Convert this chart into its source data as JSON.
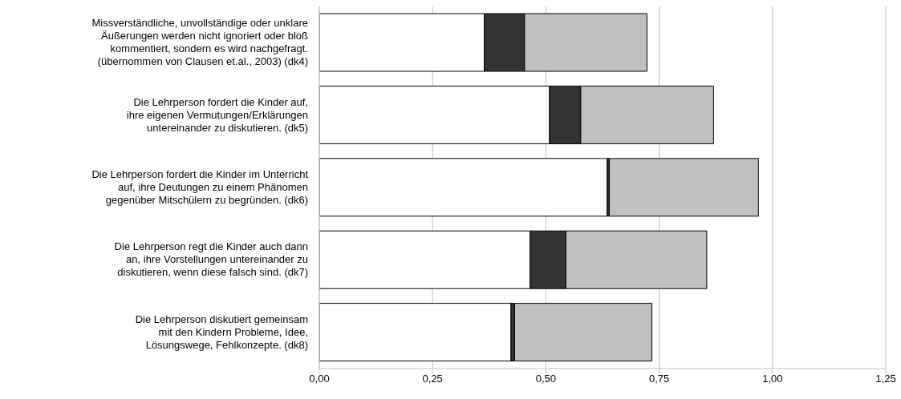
{
  "chart_data": {
    "type": "bar",
    "orientation": "horizontal",
    "stacked": true,
    "categories": [
      "Missverständliche, unvollständige oder unklare\nÄußerungen werden nicht ignoriert oder bloß\nkommentiert, sondern es wird nachgefragt.\n(übernommen von Clausen et.al., 2003) (dk4)",
      "Die Lehrperson fordert die Kinder auf,\nihre eigenen Vermutungen/Erklärungen\nuntereinander zu diskutieren. (dk5)",
      "Die Lehrperson fordert die Kinder im Unterricht\nauf, ihre Deutungen zu einem Phänomen\ngegenüber Mitschülern zu begründen. (dk6)",
      "Die Lehrperson regt die Kinder auch dann\nan, ihre Vorstellungen untereinander zu\ndiskutieren, wenn diese falsch sind. (dk7)",
      "Die Lehrperson diskutiert gemeinsam\nmit den Kindern Probleme, Idee,\nLösungswege, Fehlkonzepte. (dk8)"
    ],
    "series": [
      {
        "color": "#ffffff",
        "values": [
          0.364,
          0.508,
          0.635,
          0.465,
          0.423
        ]
      },
      {
        "color": "#333333",
        "values": [
          0.089,
          0.069,
          0.005,
          0.079,
          0.008
        ]
      },
      {
        "color": "#c0c0c0",
        "values": [
          0.27,
          0.293,
          0.329,
          0.311,
          0.303
        ]
      }
    ],
    "xlim": [
      0,
      1.25
    ],
    "xticks": [
      {
        "value": 0,
        "label": "0,00"
      },
      {
        "value": 0.25,
        "label": "0,25"
      },
      {
        "value": 0.5,
        "label": "0,50"
      },
      {
        "value": 0.75,
        "label": "0,75"
      },
      {
        "value": 1,
        "label": "1,00"
      },
      {
        "value": 1.25,
        "label": "1,25"
      }
    ],
    "grid": "x",
    "legend": false
  }
}
